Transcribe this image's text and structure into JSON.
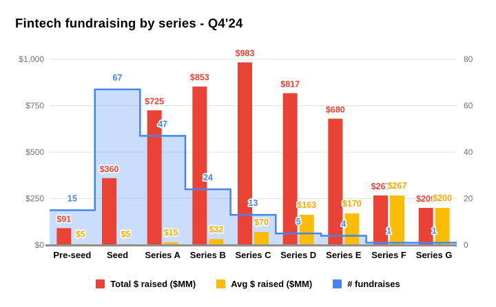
{
  "title": "Fintech fundraising by series - Q4'24",
  "chart_data": {
    "type": "combo",
    "title": "Fintech fundraising by series - Q4'24",
    "categories": [
      "Pre-seed",
      "Seed",
      "Series A",
      "Series B",
      "Series C",
      "Series D",
      "Series E",
      "Series F",
      "Series G"
    ],
    "series": [
      {
        "name": "Total $ raised ($MM)",
        "type": "bar",
        "axis": "left",
        "color": "#EA4335",
        "label_color": "#EA4335",
        "values": [
          91,
          360,
          725,
          853,
          983,
          817,
          680,
          267,
          200
        ],
        "labels": [
          "$91",
          "$360",
          "$725",
          "$853",
          "$983",
          "$817",
          "$680",
          "$267",
          "$200"
        ]
      },
      {
        "name": "Avg $ raised ($MM)",
        "type": "bar",
        "axis": "left",
        "color": "#FBBC04",
        "label_color": "#F9AB00",
        "values": [
          5,
          5,
          15,
          32,
          70,
          163,
          170,
          267,
          200
        ],
        "labels": [
          "$5",
          "$5",
          "$15",
          "$32",
          "$70",
          "$163",
          "$170",
          "$267",
          "$200"
        ]
      },
      {
        "name": "# fundraises",
        "type": "step-area",
        "axis": "right",
        "color": "#4285F4",
        "label_color": "#4285F4",
        "fill": "rgba(66,133,244,0.28)",
        "values": [
          15,
          67,
          47,
          24,
          13,
          5,
          4,
          1,
          1
        ],
        "labels": [
          "15",
          "67",
          "47",
          "24",
          "13",
          "5",
          "4",
          "1",
          "1"
        ]
      }
    ],
    "left_axis": {
      "ticks": [
        "$0",
        "$250",
        "$500",
        "$750",
        "$1,000"
      ],
      "values": [
        0,
        250,
        500,
        750,
        1000
      ],
      "max": 1000
    },
    "right_axis": {
      "ticks": [
        "0",
        "20",
        "40",
        "60",
        "80"
      ],
      "values": [
        0,
        20,
        40,
        60,
        80
      ],
      "max": 80
    },
    "grid": true,
    "legend_position": "bottom"
  },
  "legend": {
    "items": [
      {
        "label": "Total $ raised ($MM)",
        "color": "#EA4335"
      },
      {
        "label": "Avg $ raised ($MM)",
        "color": "#FBBC04"
      },
      {
        "label": "# fundraises",
        "color": "#4285F4"
      }
    ]
  }
}
